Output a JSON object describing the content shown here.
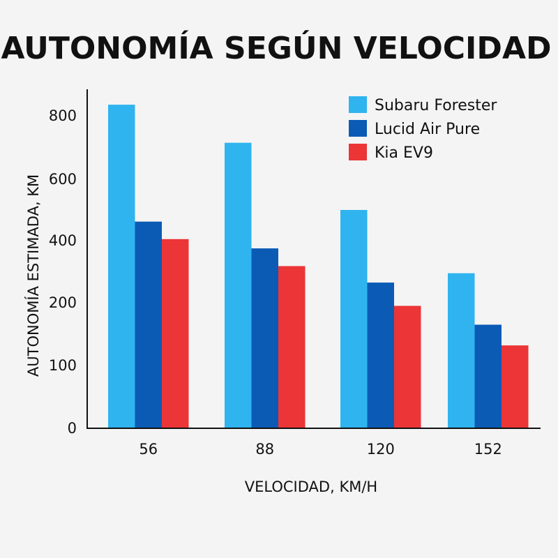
{
  "chart_data": {
    "type": "bar",
    "title": "AUTONOMÍA SEGÚN VELOCIDAD",
    "xlabel": "VELOCIDAD, KM/H",
    "ylabel": "AUTONOMÍA ESTIMADA, KM",
    "categories": [
      "56",
      "88",
      "120",
      "152"
    ],
    "y_ticks": [
      {
        "label": "0",
        "value": 0
      },
      {
        "label": "100",
        "value": 100
      },
      {
        "label": "200",
        "value": 200
      },
      {
        "label": "400",
        "value": 400
      },
      {
        "label": "600",
        "value": 600
      },
      {
        "label": "800",
        "value": 800
      }
    ],
    "grid": false,
    "legend_position": "top-right",
    "series": [
      {
        "name": "Subaru Forester",
        "color": "#2fb4ef",
        "values": [
          835,
          715,
          500,
          295
        ]
      },
      {
        "name": "Lucid Air Pure",
        "color": "#0b5bb5",
        "values": [
          462,
          375,
          265,
          165
        ]
      },
      {
        "name": "Kia EV9",
        "color": "#ec3537",
        "values": [
          405,
          318,
          195,
          132
        ]
      }
    ]
  }
}
